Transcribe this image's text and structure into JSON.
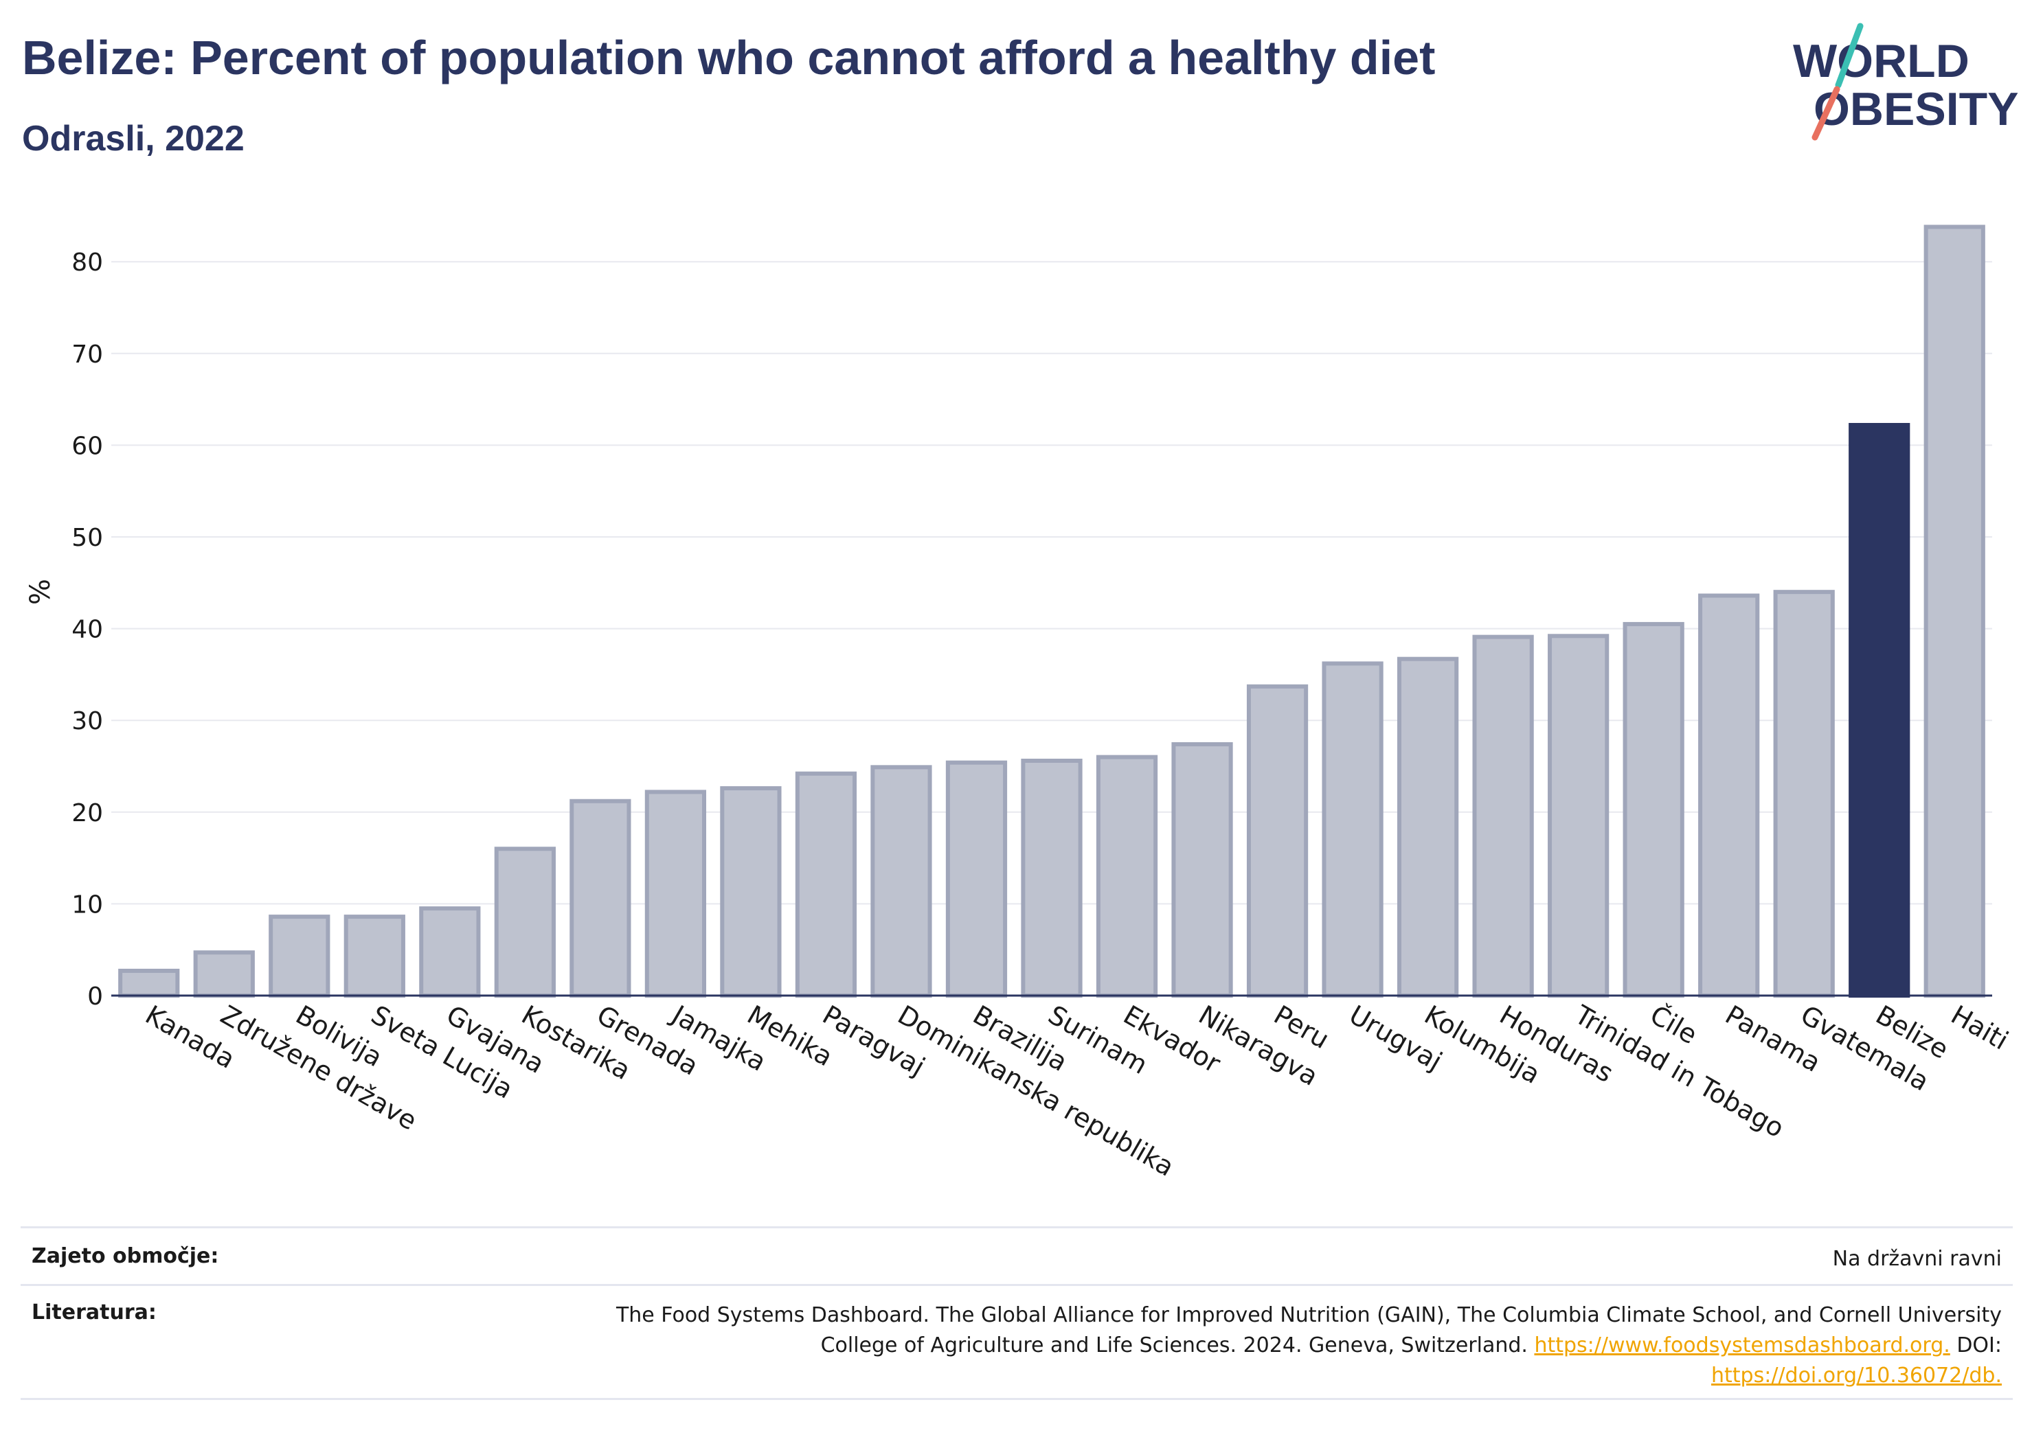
{
  "header": {
    "title": "Belize: Percent of population who cannot afford a healthy diet",
    "subtitle": "Odrasli, 2022"
  },
  "logo": {
    "line1": "WORLD",
    "line2": "OBESITY",
    "accent_teal": "#3bbfb3",
    "accent_coral": "#e8705f"
  },
  "chart_data": {
    "type": "bar",
    "ylabel": "%",
    "ylim": [
      0,
      87
    ],
    "yticks": [
      0,
      10,
      20,
      30,
      40,
      50,
      60,
      70,
      80
    ],
    "grid": true,
    "categories": [
      "Kanada",
      "Združene države",
      "Bolivija",
      "Sveta Lucija",
      "Gvajana",
      "Kostarika",
      "Grenada",
      "Jamajka",
      "Mehika",
      "Paragvaj",
      "Dominikanska republika",
      "Brazilija",
      "Surinam",
      "Ekvador",
      "Nikaragva",
      "Peru",
      "Urugvaj",
      "Kolumbija",
      "Honduras",
      "Trinidad in Tobago",
      "Čile",
      "Panama",
      "Gvatemala",
      "Belize",
      "Haiti"
    ],
    "values": [
      2.7,
      4.7,
      8.6,
      8.6,
      9.5,
      16.0,
      21.2,
      22.2,
      22.6,
      24.2,
      24.9,
      25.4,
      25.6,
      26.0,
      27.4,
      33.7,
      36.2,
      36.7,
      39.1,
      39.2,
      40.5,
      43.6,
      44.0,
      62.2,
      83.8
    ],
    "highlight": "Belize",
    "colors": {
      "bar": "#bec2cf",
      "bar_border": "#a0a6ba",
      "highlight": "#2b3561",
      "grid": "#e8e9ef",
      "axis": "#2b3561"
    }
  },
  "footer": {
    "coverage_label": "Zajeto območje:",
    "coverage_value": "Na državni ravni",
    "literature_label": "Literatura:",
    "literature_line1": "The Food Systems Dashboard. The Global Alliance for Improved Nutrition (GAIN), The Columbia Climate School, and Cornell University",
    "literature_line2_text": "College of Agriculture and Life Sciences. 2024. Geneva, Switzerland. ",
    "literature_link1": "https://www.foodsystemsdashboard.org.",
    "literature_doi": " DOI:",
    "literature_link2": "https://doi.org/10.36072/db."
  }
}
